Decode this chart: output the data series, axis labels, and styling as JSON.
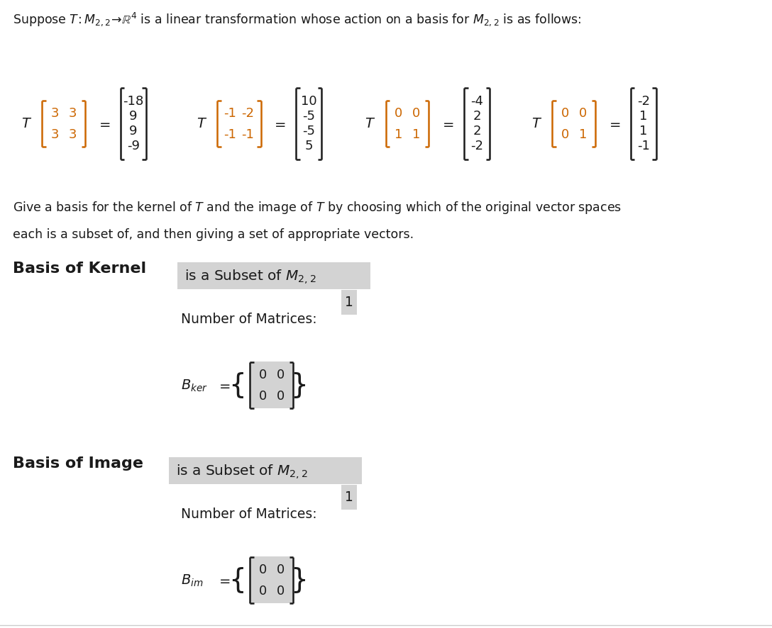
{
  "bg_color": "#ffffff",
  "text_color": "#1a1a1a",
  "orange_color": "#cc6600",
  "highlight_color": "#d3d3d3",
  "fig_w": 10.88,
  "fig_h": 8.87,
  "dpi": 100,
  "title": "Suppose $T\\!: M_{2,2}\\!\\rightarrow\\!\\mathbb{R}^4$ is a linear transformation whose action on a basis for $M_{2,2}$ is as follows:",
  "desc1": "Give a basis for the kernel of $T$ and the image of $T$ by choosing which of the original vector spaces",
  "desc2": "each is a subset of, and then giving a set of appropriate vectors.",
  "kern_label": "Basis of Kernel",
  "kern_subset": "is a Subset of $M_{2,2}$",
  "kern_num": "Number of Matrices:",
  "kern_num_val": "1",
  "kern_bname": "$B_{ker}$",
  "img_label": "Basis of Image",
  "img_subset": "is a Subset of $M_{2,2}$",
  "img_num": "Number of Matrices:",
  "img_num_val": "1",
  "img_bname": "$B_{im}$",
  "eq1_in": [
    [
      "3",
      "3"
    ],
    [
      "3",
      "3"
    ]
  ],
  "eq1_out": [
    "-18",
    "9",
    "9",
    "-9"
  ],
  "eq2_in": [
    [
      "-1",
      "-2"
    ],
    [
      "-1",
      "-1"
    ]
  ],
  "eq2_out": [
    "10",
    "-5",
    "-5",
    "5"
  ],
  "eq3_in": [
    [
      "0",
      "0"
    ],
    [
      "1",
      "1"
    ]
  ],
  "eq3_out": [
    "-4",
    "2",
    "2",
    "-2"
  ],
  "eq4_in": [
    [
      "0",
      "0"
    ],
    [
      "0",
      "1"
    ]
  ],
  "eq4_out": [
    "-2",
    "1",
    "1",
    "-1"
  ],
  "zero_mat": [
    [
      "0",
      "0"
    ],
    [
      "0",
      "0"
    ]
  ]
}
